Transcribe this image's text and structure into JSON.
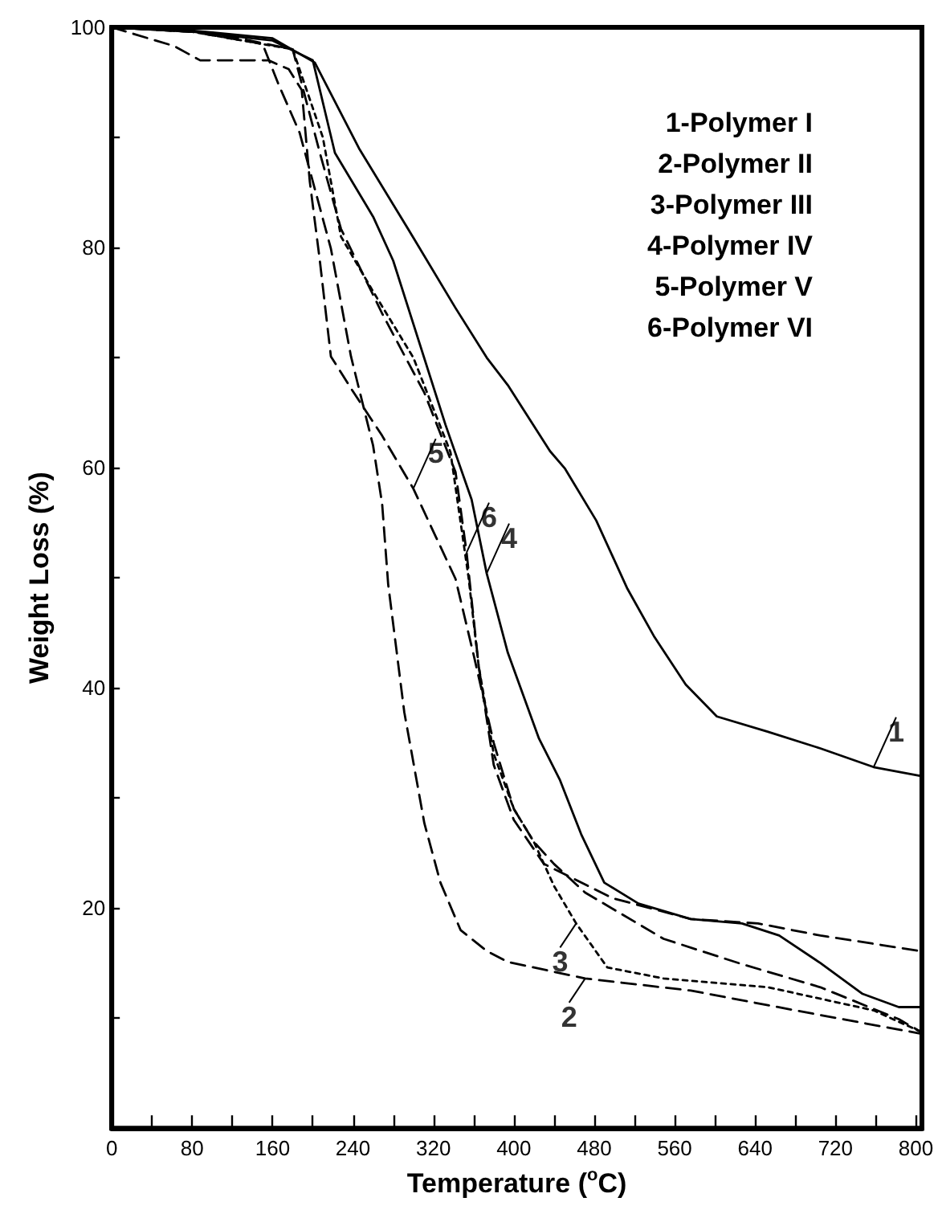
{
  "chart_data": {
    "type": "line",
    "xlabel": "Temperature ($^{o}$C)",
    "ylabel": "Weight Loss (%)",
    "xlim": [
      0,
      806
    ],
    "ylim": [
      0,
      100
    ],
    "xticks": [
      0,
      {
        "value": 40,
        "label": null
      },
      80,
      {
        "value": 120,
        "label": null
      },
      160,
      {
        "value": 200,
        "label": null
      },
      240,
      {
        "value": 280,
        "label": null
      },
      320,
      {
        "value": 360,
        "label": null
      },
      400,
      {
        "value": 440,
        "label": null
      },
      480,
      {
        "value": 520,
        "label": null
      },
      560,
      {
        "value": 600,
        "label": null
      },
      640,
      {
        "value": 680,
        "label": null
      },
      720,
      {
        "value": 760,
        "label": null
      },
      800
    ],
    "yticks": [
      {
        "value": 0,
        "label": null
      },
      {
        "value": 10,
        "label": null
      },
      20,
      {
        "value": 30,
        "label": null
      },
      40,
      {
        "value": 50,
        "label": null
      },
      60,
      {
        "value": 70,
        "label": null
      },
      80,
      {
        "value": 90,
        "label": null
      },
      100
    ],
    "grid": false,
    "marker": "none",
    "series": [
      {
        "color": "#000000",
        "line_style": "solid",
        "x": [
          0,
          80,
          160,
          202,
          246,
          300,
          342,
          373,
          394,
          436,
          451,
          482,
          513,
          540,
          571,
          602,
          653,
          705,
          758,
          804
        ],
        "values": [
          100,
          99.7,
          99,
          96.8,
          89,
          80.9,
          74.5,
          70,
          67.5,
          61.5,
          59.9,
          55.2,
          49,
          44.6,
          40.3,
          37.4,
          36,
          34.5,
          32.8,
          32
        ]
      },
      {
        "color": "#000000",
        "line_style": "dashed",
        "x": [
          0,
          80,
          150,
          166,
          187,
          218,
          238,
          260,
          269,
          275,
          291,
          311,
          327,
          347,
          373,
          394,
          471,
          576,
          680,
          804
        ],
        "values": [
          100,
          99.6,
          98.5,
          94.8,
          90.4,
          79.9,
          70.1,
          62,
          56.7,
          49.4,
          37.8,
          27.7,
          22.3,
          18,
          16.1,
          15.1,
          13.6,
          12.5,
          10.7,
          8.6
        ]
      },
      {
        "color": "#000000",
        "line_style": "dotted",
        "x": [
          0,
          80,
          180,
          210,
          228,
          260,
          300,
          337,
          355,
          365,
          380,
          400,
          420,
          440,
          462,
          493,
          549,
          653,
          758,
          804
        ],
        "values": [
          100,
          99.6,
          98,
          90,
          81,
          76,
          70,
          61.4,
          50,
          42,
          34,
          29,
          26,
          22,
          18.6,
          14.6,
          13.6,
          12.8,
          10.7,
          8.8
        ]
      },
      {
        "color": "#000000",
        "line_style": "solid",
        "x": [
          0,
          80,
          160,
          200,
          222,
          260,
          280,
          332,
          358,
          373,
          394,
          425,
          446,
          467,
          490,
          524,
          576,
          627,
          664,
          705,
          747,
          783,
          804
        ],
        "values": [
          100,
          99.6,
          98.8,
          97,
          88.6,
          82.8,
          78.8,
          63.9,
          57.1,
          50.4,
          43.2,
          35.4,
          31.6,
          26.7,
          22.3,
          20.4,
          19,
          18.6,
          17.5,
          15,
          12.2,
          11,
          11
        ]
      },
      {
        "color": "#000000",
        "line_style": "dashed",
        "x": [
          0,
          62,
          88,
          124,
          156,
          176,
          189,
          197,
          207,
          218,
          238,
          269,
          300,
          322,
          342,
          360,
          380,
          400,
          420,
          440,
          471,
          549,
          627,
          705,
          783,
          804
        ],
        "values": [
          100,
          98.3,
          97,
          97,
          97,
          96.2,
          94.3,
          86,
          78.8,
          70.1,
          67.2,
          62.9,
          58.1,
          53.8,
          49.9,
          43,
          35,
          29,
          26,
          24,
          21.4,
          17.2,
          14.9,
          12.8,
          9.9,
          8.8
        ]
      },
      {
        "color": "#000000",
        "line_style": "dashed",
        "x": [
          0,
          100,
          180,
          207,
          228,
          269,
          311,
          342,
          353,
          365,
          380,
          400,
          430,
          498,
          576,
          643,
          705,
          804
        ],
        "values": [
          100,
          99.5,
          98,
          88.6,
          81.7,
          74,
          66.8,
          59.6,
          52.3,
          42,
          33,
          28,
          24,
          20.9,
          19,
          18.6,
          17.5,
          16.1
        ]
      }
    ],
    "annotations": [
      "1-Polymer I",
      "2-Polymer II",
      "3-Polymer III",
      "4-Polymer IV",
      "5-Polymer V",
      "6-Polymer VI",
      {
        "text": "1",
        "x": 758,
        "y": 32.8
      },
      {
        "text": "2",
        "x": 471,
        "y": 13.6
      },
      {
        "text": "3",
        "x": 462,
        "y": 18.6
      },
      {
        "text": "4",
        "x": 373,
        "y": 50.4
      },
      {
        "text": "5",
        "x": 300,
        "y": 58.1
      },
      {
        "text": "6",
        "x": 353,
        "y": 52.3
      }
    ]
  }
}
